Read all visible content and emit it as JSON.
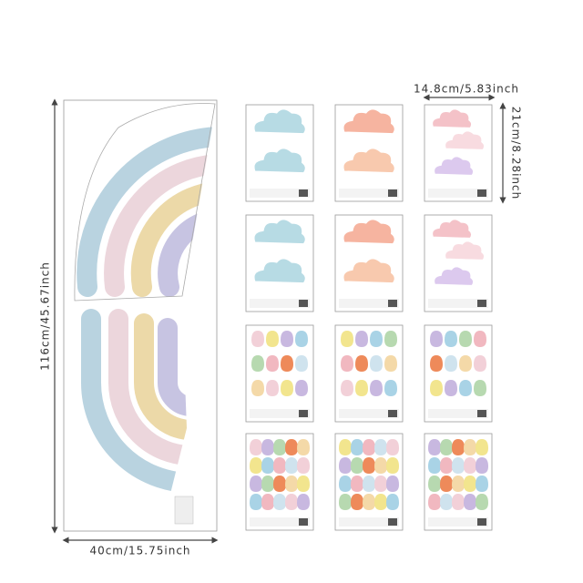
{
  "dimensions": {
    "height": "116cm/45.67inch",
    "width": "40cm/15.75inch",
    "sheet_width": "14.8cm/5.83inch",
    "sheet_height": "21cm/8.28inch"
  }
}
